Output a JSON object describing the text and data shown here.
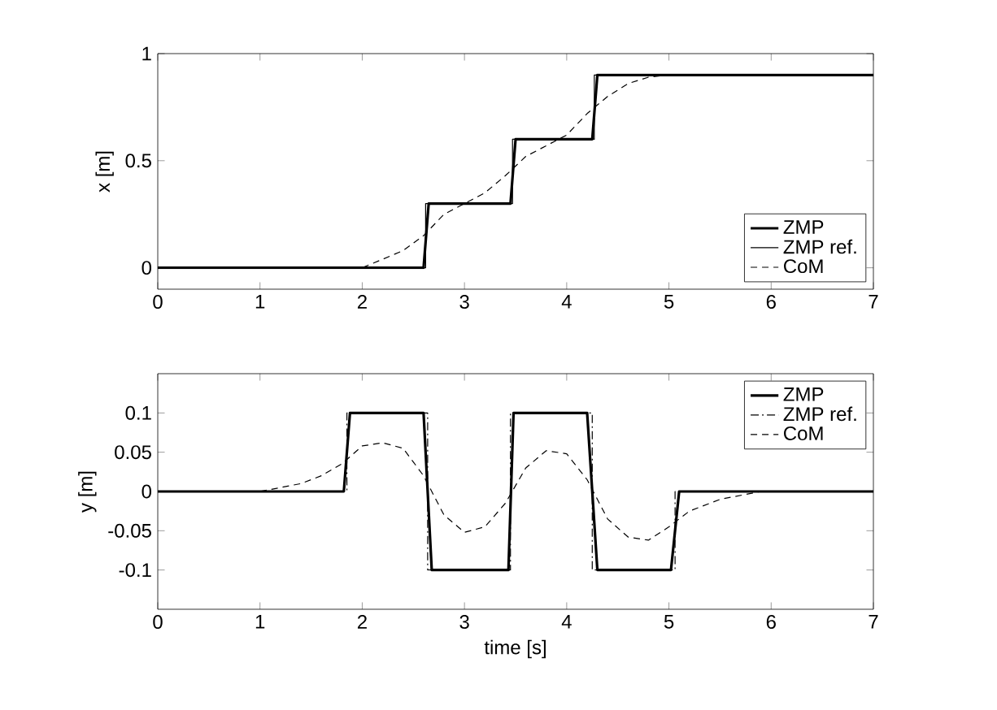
{
  "chart_data": [
    {
      "type": "line",
      "ylabel": "x [m]",
      "xlim": [
        0,
        7
      ],
      "ylim": [
        -0.1,
        1
      ],
      "xticks": [
        0,
        1,
        2,
        3,
        4,
        5,
        6,
        7
      ],
      "yticks": [
        0,
        0.5,
        1
      ],
      "legend": "bottom right",
      "grid": false,
      "series": [
        {
          "name": "ZMP",
          "color": "#000000",
          "line_style": "solid",
          "x": [
            0,
            2.6,
            2.65,
            3.45,
            3.5,
            4.25,
            4.3,
            7
          ],
          "values": [
            0,
            0,
            0.3,
            0.3,
            0.6,
            0.6,
            0.9,
            0.9
          ]
        },
        {
          "name": "ZMP ref.",
          "color": "#000000",
          "line_style": "solid",
          "x": [
            0,
            2.62,
            2.62,
            3.47,
            3.47,
            4.27,
            4.27,
            7
          ],
          "values": [
            0,
            0,
            0.3,
            0.3,
            0.6,
            0.6,
            0.9,
            0.9
          ]
        },
        {
          "name": "CoM",
          "color": "#000000",
          "line_style": "dashed",
          "x": [
            0,
            2.0,
            2.2,
            2.4,
            2.6,
            2.8,
            3.0,
            3.2,
            3.4,
            3.6,
            3.8,
            4.0,
            4.2,
            4.4,
            4.6,
            4.8,
            5.0,
            7
          ],
          "values": [
            0,
            0,
            0.04,
            0.08,
            0.15,
            0.25,
            0.3,
            0.35,
            0.43,
            0.52,
            0.57,
            0.62,
            0.72,
            0.8,
            0.86,
            0.89,
            0.9,
            0.9
          ]
        }
      ]
    },
    {
      "type": "line",
      "xlabel": "time [s]",
      "ylabel": "y [m]",
      "xlim": [
        0,
        7
      ],
      "ylim": [
        -0.15,
        0.15
      ],
      "xticks": [
        0,
        1,
        2,
        3,
        4,
        5,
        6,
        7
      ],
      "yticks": [
        -0.1,
        -0.05,
        0,
        0.05,
        0.1
      ],
      "legend": "top right",
      "grid": false,
      "series": [
        {
          "name": "ZMP",
          "color": "#000000",
          "line_style": "solid",
          "x": [
            0,
            1.82,
            1.88,
            2.6,
            2.68,
            3.43,
            3.48,
            4.2,
            4.3,
            5.02,
            5.1,
            7
          ],
          "values": [
            0,
            0,
            0.1,
            0.1,
            -0.1,
            -0.1,
            0.1,
            0.1,
            -0.1,
            -0.1,
            0,
            0
          ]
        },
        {
          "name": "ZMP ref.",
          "color": "#000000",
          "line_style": "dotted",
          "x": [
            0,
            1.85,
            1.85,
            2.64,
            2.64,
            3.45,
            3.45,
            4.25,
            4.25,
            5.06,
            5.06,
            7
          ],
          "values": [
            0,
            0,
            0.1,
            0.1,
            -0.1,
            -0.1,
            0.1,
            0.1,
            -0.1,
            -0.1,
            0,
            0
          ]
        },
        {
          "name": "CoM",
          "color": "#000000",
          "line_style": "dashed",
          "x": [
            0,
            1.0,
            1.4,
            1.6,
            1.8,
            2.0,
            2.2,
            2.4,
            2.6,
            2.8,
            3.0,
            3.2,
            3.4,
            3.6,
            3.8,
            4.0,
            4.2,
            4.4,
            4.6,
            4.8,
            5.0,
            5.2,
            5.5,
            5.9,
            7
          ],
          "values": [
            0,
            0,
            0.01,
            0.02,
            0.035,
            0.058,
            0.062,
            0.055,
            0.02,
            -0.03,
            -0.052,
            -0.045,
            -0.015,
            0.03,
            0.052,
            0.048,
            0.015,
            -0.035,
            -0.058,
            -0.062,
            -0.045,
            -0.025,
            -0.01,
            0,
            0
          ]
        }
      ]
    }
  ]
}
